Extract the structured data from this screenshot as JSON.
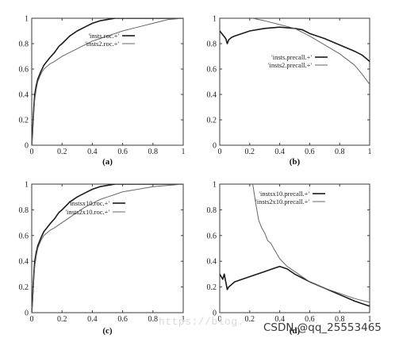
{
  "chart_data": [
    {
      "type": "line",
      "panel_label": "(a)",
      "xlim": [
        0,
        1
      ],
      "ylim": [
        0,
        1
      ],
      "x_ticks": [
        "0",
        "0.2",
        "0.4",
        "0.6",
        "0.8",
        "1"
      ],
      "y_ticks": [
        "0",
        "0.2",
        "0.4",
        "0.6",
        "0.8",
        "1"
      ],
      "grid": false,
      "legend_position": "top-right",
      "series": [
        {
          "name": "'insts.roc.+'",
          "style": "thick",
          "x": [
            0,
            0.005,
            0.01,
            0.015,
            0.02,
            0.03,
            0.04,
            0.05,
            0.06,
            0.08,
            0.1,
            0.12,
            0.15,
            0.18,
            0.2,
            0.25,
            0.3,
            0.35,
            0.4,
            0.45,
            0.5,
            0.55,
            0.6,
            0.7,
            0.8,
            0.9,
            1.0
          ],
          "y": [
            0,
            0.1,
            0.22,
            0.32,
            0.4,
            0.47,
            0.52,
            0.55,
            0.58,
            0.63,
            0.66,
            0.69,
            0.73,
            0.78,
            0.8,
            0.86,
            0.9,
            0.93,
            0.96,
            0.98,
            0.99,
            1.0,
            1.0,
            1.0,
            1.0,
            1.0,
            1.0
          ]
        },
        {
          "name": "'insts2.roc.+'",
          "style": "thin",
          "x": [
            0,
            0.005,
            0.01,
            0.015,
            0.02,
            0.03,
            0.04,
            0.05,
            0.06,
            0.08,
            0.1,
            0.12,
            0.15,
            0.2,
            0.25,
            0.3,
            0.35,
            0.4,
            0.45,
            0.5,
            0.55,
            0.6,
            0.7,
            0.8,
            0.9,
            1.0
          ],
          "y": [
            0,
            0.08,
            0.18,
            0.28,
            0.36,
            0.44,
            0.5,
            0.53,
            0.56,
            0.6,
            0.62,
            0.64,
            0.66,
            0.7,
            0.73,
            0.76,
            0.79,
            0.82,
            0.84,
            0.86,
            0.88,
            0.9,
            0.93,
            0.96,
            0.99,
            1.0
          ]
        }
      ]
    },
    {
      "type": "line",
      "panel_label": "(b)",
      "xlim": [
        0,
        1
      ],
      "ylim": [
        0,
        1
      ],
      "x_ticks": [
        "0",
        "0.2",
        "0.4",
        "0.6",
        "0.8",
        "1"
      ],
      "y_ticks": [
        "0",
        "0.2",
        "0.4",
        "0.6",
        "0.8",
        "1"
      ],
      "grid": false,
      "legend_position": "center-right",
      "series": [
        {
          "name": "'insts.precall.+'",
          "style": "thick",
          "x": [
            0,
            0.02,
            0.04,
            0.05,
            0.06,
            0.08,
            0.1,
            0.15,
            0.2,
            0.3,
            0.4,
            0.5,
            0.55,
            0.6,
            0.7,
            0.8,
            0.9,
            0.95,
            1.0
          ],
          "y": [
            0.9,
            0.87,
            0.84,
            0.8,
            0.83,
            0.85,
            0.86,
            0.88,
            0.9,
            0.92,
            0.93,
            0.92,
            0.91,
            0.88,
            0.84,
            0.79,
            0.74,
            0.71,
            0.66
          ]
        },
        {
          "name": "'insts2.precall.+'",
          "style": "thin",
          "x": [
            0.22,
            0.3,
            0.4,
            0.5,
            0.6,
            0.7,
            0.8,
            0.9,
            0.95,
            1.0
          ],
          "y": [
            1.0,
            0.98,
            0.95,
            0.92,
            0.86,
            0.79,
            0.72,
            0.63,
            0.56,
            0.48
          ]
        }
      ]
    },
    {
      "type": "line",
      "panel_label": "(c)",
      "xlim": [
        0,
        1
      ],
      "ylim": [
        0,
        1
      ],
      "x_ticks": [
        "0",
        "0.2",
        "0.4",
        "0.6",
        "0.8",
        "1"
      ],
      "y_ticks": [
        "0",
        "0.2",
        "0.4",
        "0.6",
        "0.8",
        "1"
      ],
      "grid": false,
      "legend_position": "top-right",
      "series": [
        {
          "name": "'instsx10.roc.+'",
          "style": "thick",
          "x": [
            0,
            0.005,
            0.01,
            0.015,
            0.02,
            0.03,
            0.04,
            0.05,
            0.06,
            0.08,
            0.1,
            0.12,
            0.15,
            0.18,
            0.2,
            0.25,
            0.3,
            0.35,
            0.4,
            0.45,
            0.5,
            0.55,
            0.6,
            0.7,
            0.8,
            0.9,
            1.0
          ],
          "y": [
            0,
            0.1,
            0.22,
            0.32,
            0.4,
            0.47,
            0.52,
            0.55,
            0.58,
            0.63,
            0.66,
            0.69,
            0.73,
            0.78,
            0.8,
            0.86,
            0.9,
            0.93,
            0.96,
            0.98,
            0.99,
            1.0,
            1.0,
            1.0,
            1.0,
            1.0,
            1.0
          ]
        },
        {
          "name": "'insts2x10.roc.+'",
          "style": "thin",
          "x": [
            0,
            0.005,
            0.01,
            0.015,
            0.02,
            0.03,
            0.04,
            0.05,
            0.06,
            0.08,
            0.1,
            0.12,
            0.15,
            0.2,
            0.25,
            0.3,
            0.35,
            0.4,
            0.45,
            0.5,
            0.55,
            0.6,
            0.7,
            0.8,
            0.9,
            1.0
          ],
          "y": [
            0,
            0.08,
            0.18,
            0.28,
            0.36,
            0.44,
            0.5,
            0.53,
            0.56,
            0.6,
            0.62,
            0.64,
            0.66,
            0.7,
            0.74,
            0.78,
            0.82,
            0.85,
            0.88,
            0.9,
            0.92,
            0.94,
            0.96,
            0.98,
            0.99,
            1.0
          ]
        }
      ]
    },
    {
      "type": "line",
      "panel_label": "(d)",
      "xlim": [
        0,
        1
      ],
      "ylim": [
        0,
        1
      ],
      "x_ticks": [
        "0",
        "0.2",
        "0.4",
        "0.6",
        "0.8",
        "1"
      ],
      "y_ticks": [
        "0",
        "0.2",
        "0.4",
        "0.6",
        "0.8",
        "1"
      ],
      "grid": false,
      "legend_position": "top-right",
      "series": [
        {
          "name": "'instsx10.precall.+'",
          "style": "thick",
          "x": [
            0,
            0.02,
            0.03,
            0.04,
            0.05,
            0.06,
            0.08,
            0.1,
            0.15,
            0.2,
            0.25,
            0.3,
            0.35,
            0.4,
            0.45,
            0.5,
            0.6,
            0.7,
            0.8,
            0.9,
            1.0
          ],
          "y": [
            0.3,
            0.26,
            0.3,
            0.24,
            0.18,
            0.2,
            0.22,
            0.24,
            0.26,
            0.28,
            0.3,
            0.32,
            0.34,
            0.36,
            0.34,
            0.3,
            0.24,
            0.19,
            0.14,
            0.09,
            0.05
          ]
        },
        {
          "name": "'insts2x10.precall.+'",
          "style": "thin",
          "x": [
            0.22,
            0.24,
            0.26,
            0.28,
            0.3,
            0.32,
            0.34,
            0.36,
            0.38,
            0.4,
            0.45,
            0.5,
            0.55,
            0.6,
            0.7,
            0.8,
            0.9,
            1.0
          ],
          "y": [
            1.0,
            0.85,
            0.72,
            0.66,
            0.62,
            0.56,
            0.54,
            0.5,
            0.46,
            0.42,
            0.36,
            0.32,
            0.28,
            0.24,
            0.19,
            0.15,
            0.11,
            0.08
          ]
        }
      ]
    }
  ],
  "watermarks": {
    "blog": "https://blog.",
    "csdn": "CSDN @qq_25553465"
  }
}
